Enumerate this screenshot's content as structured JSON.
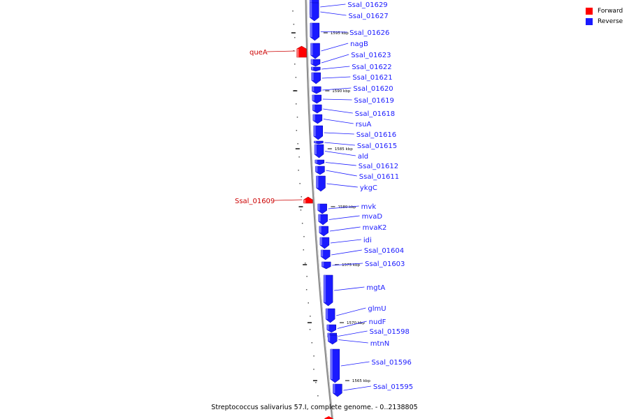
{
  "caption": "Streptococcus salivarius 57.I, complete genome. - 0..2138805",
  "colors": {
    "forward": "#ff0000",
    "reverse": "#1a1aff",
    "backbone": "#8c8c8c",
    "tick": "#000000"
  },
  "legend": [
    {
      "label": "Forward",
      "color": "#ff0000"
    },
    {
      "label": "Reverse",
      "color": "#1a1aff"
    }
  ],
  "scale_labels": [
    "1595 kbp",
    "1590 kbp",
    "1585 kbp",
    "1580 kbp",
    "1575 kbp",
    "1570 kbp",
    "1565 kbp"
  ],
  "genes": [
    {
      "name": "Ssal_01629",
      "strand": "reverse"
    },
    {
      "name": "Ssal_01627",
      "strand": "reverse"
    },
    {
      "name": "Ssal_01626",
      "strand": "reverse"
    },
    {
      "name": "queA",
      "strand": "forward"
    },
    {
      "name": "nagB",
      "strand": "reverse"
    },
    {
      "name": "Ssal_01623",
      "strand": "reverse"
    },
    {
      "name": "Ssal_01622",
      "strand": "reverse"
    },
    {
      "name": "Ssal_01621",
      "strand": "reverse"
    },
    {
      "name": "Ssal_01620",
      "strand": "reverse"
    },
    {
      "name": "Ssal_01619",
      "strand": "reverse"
    },
    {
      "name": "Ssal_01618",
      "strand": "reverse"
    },
    {
      "name": "rsuA",
      "strand": "reverse"
    },
    {
      "name": "Ssal_01616",
      "strand": "reverse"
    },
    {
      "name": "Ssal_01615",
      "strand": "reverse"
    },
    {
      "name": "ald",
      "strand": "reverse"
    },
    {
      "name": "Ssal_01612",
      "strand": "reverse"
    },
    {
      "name": "Ssal_01611",
      "strand": "reverse"
    },
    {
      "name": "ykgC",
      "strand": "reverse"
    },
    {
      "name": "Ssal_01609",
      "strand": "forward"
    },
    {
      "name": "mvk",
      "strand": "reverse"
    },
    {
      "name": "mvaD",
      "strand": "reverse"
    },
    {
      "name": "mvaK2",
      "strand": "reverse"
    },
    {
      "name": "idi",
      "strand": "reverse"
    },
    {
      "name": "Ssal_01604",
      "strand": "reverse"
    },
    {
      "name": "Ssal_01603",
      "strand": "reverse"
    },
    {
      "name": "mgtA",
      "strand": "reverse"
    },
    {
      "name": "glmU",
      "strand": "reverse"
    },
    {
      "name": "nudF",
      "strand": "reverse"
    },
    {
      "name": "Ssal_01598",
      "strand": "reverse"
    },
    {
      "name": "mtnN",
      "strand": "reverse"
    },
    {
      "name": "Ssal_01596",
      "strand": "reverse"
    },
    {
      "name": "Ssal_01595",
      "strand": "reverse"
    }
  ]
}
